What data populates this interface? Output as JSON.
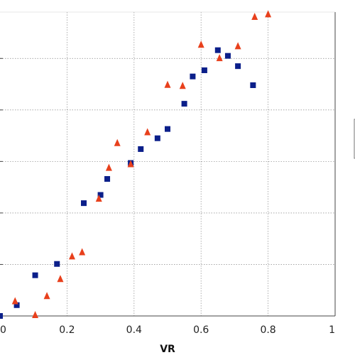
{
  "chart_data": {
    "type": "scatter",
    "title": "",
    "xlabel": "VR",
    "ylabel": "",
    "xlim": [
      0,
      1
    ],
    "ylim": [
      0,
      0.59
    ],
    "x_ticks": [
      "0",
      "0.2",
      "0.4",
      "0.6",
      "0.8",
      "1"
    ],
    "y_ticks": [
      0.1,
      0.2,
      0.3,
      0.4,
      0.5
    ],
    "grid": true,
    "legend": "right (box partially visible, entries cropped)",
    "series": [
      {
        "marker": "square",
        "color": "#0b1f8a",
        "points": [
          {
            "x": 0.0,
            "y": 0.0
          },
          {
            "x": 0.05,
            "y": 0.021
          },
          {
            "x": 0.105,
            "y": 0.079
          },
          {
            "x": 0.17,
            "y": 0.101
          },
          {
            "x": 0.25,
            "y": 0.219
          },
          {
            "x": 0.3,
            "y": 0.235
          },
          {
            "x": 0.32,
            "y": 0.266
          },
          {
            "x": 0.39,
            "y": 0.297
          },
          {
            "x": 0.42,
            "y": 0.324
          },
          {
            "x": 0.47,
            "y": 0.345
          },
          {
            "x": 0.5,
            "y": 0.363
          },
          {
            "x": 0.55,
            "y": 0.412
          },
          {
            "x": 0.575,
            "y": 0.465
          },
          {
            "x": 0.61,
            "y": 0.477
          },
          {
            "x": 0.65,
            "y": 0.516
          },
          {
            "x": 0.68,
            "y": 0.505
          },
          {
            "x": 0.71,
            "y": 0.485
          },
          {
            "x": 0.755,
            "y": 0.448
          }
        ]
      },
      {
        "marker": "triangle",
        "color": "#e8401c",
        "points": [
          {
            "x": 0.045,
            "y": 0.029
          },
          {
            "x": 0.105,
            "y": 0.002
          },
          {
            "x": 0.14,
            "y": 0.039
          },
          {
            "x": 0.18,
            "y": 0.072
          },
          {
            "x": 0.215,
            "y": 0.116
          },
          {
            "x": 0.245,
            "y": 0.124
          },
          {
            "x": 0.295,
            "y": 0.228
          },
          {
            "x": 0.325,
            "y": 0.288
          },
          {
            "x": 0.35,
            "y": 0.336
          },
          {
            "x": 0.39,
            "y": 0.295
          },
          {
            "x": 0.44,
            "y": 0.357
          },
          {
            "x": 0.5,
            "y": 0.449
          },
          {
            "x": 0.545,
            "y": 0.447
          },
          {
            "x": 0.6,
            "y": 0.527
          },
          {
            "x": 0.655,
            "y": 0.501
          },
          {
            "x": 0.71,
            "y": 0.524
          },
          {
            "x": 0.76,
            "y": 0.581
          },
          {
            "x": 0.8,
            "y": 0.586
          }
        ]
      }
    ]
  }
}
